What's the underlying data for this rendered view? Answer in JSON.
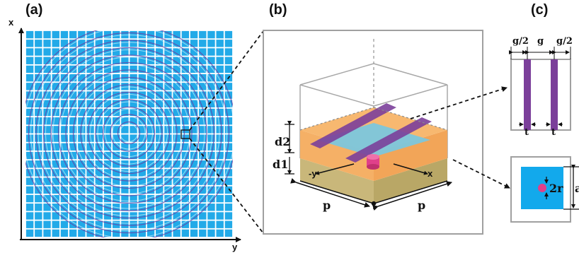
{
  "panels": {
    "a": {
      "label": "(a)",
      "x_axis": "x",
      "y_axis": "y"
    },
    "b": {
      "label": "(b)",
      "d2": "d2",
      "d1": "d1",
      "minus_y": "-y",
      "x": "x",
      "p_left": "p",
      "p_right": "p"
    },
    "c": {
      "label": "(c)",
      "g_half_left": "g/2",
      "g": "g",
      "g_half_right": "g/2",
      "t_left": "t",
      "t_right": "t",
      "two_r": "2r",
      "a": "a"
    }
  },
  "colors": {
    "grid_cell": "#22aae8",
    "grid_bg": "#ffffff",
    "rings": "#6a3aa0",
    "orange_layer": "#f7b870",
    "substrate": "#c9b77a",
    "cyan_patch": "#7cc6dc",
    "purple_strip": "#7b3f9a",
    "magenta_post": "#e0408a",
    "frame_gray": "#a0a0a0"
  }
}
